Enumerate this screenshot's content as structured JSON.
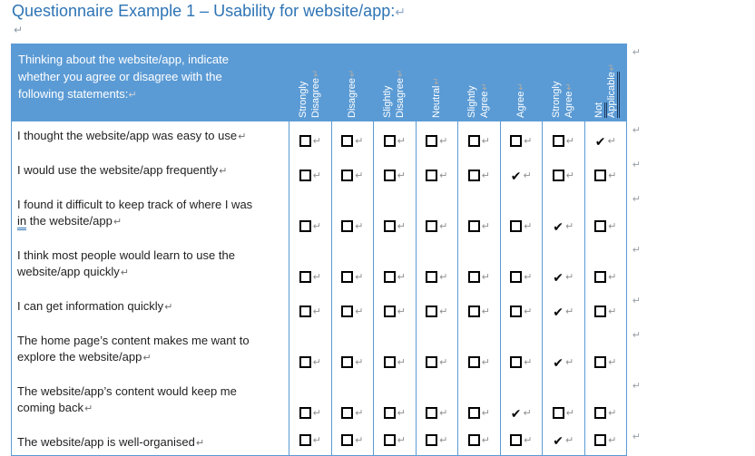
{
  "page": {
    "title": "Questionnaire Example 1 – Usability for website/app:"
  },
  "glyphs": {
    "paragraph_mark": "↵",
    "checkmark": "✔",
    "empty_checkbox": "checkbox-outline-square"
  },
  "colors": {
    "title_text": "#2E74B5",
    "header_background": "#5B9BD5",
    "table_border": "#5B9BD5",
    "header_text": "#FFFFFF",
    "not_applicable_underline": "#17365D",
    "grammar_underline": "#2E74B5",
    "checkmark": "#000000",
    "formatting_marks": "#8f8f8f"
  },
  "table": {
    "header": {
      "statement_lines": [
        "Thinking about the website/app, indicate",
        "whether you agree or disagree with the",
        "following statements:"
      ],
      "columns": [
        {
          "label": "Strongly Disagree",
          "underlined": false
        },
        {
          "label": "Disagree",
          "underlined": false
        },
        {
          "label": "Slightly Disagree",
          "underlined": false
        },
        {
          "label": "Neutral",
          "underlined": false
        },
        {
          "label": "Slightly Agree",
          "underlined": false
        },
        {
          "label": "Agree",
          "underlined": false
        },
        {
          "label": "Strongly Agree",
          "underlined": false
        },
        {
          "label": "Not Applicable",
          "underlined": true
        }
      ]
    },
    "rows": [
      {
        "lines": [
          "I thought the website/app was easy to use"
        ],
        "checked_column": "Not Applicable"
      },
      {
        "lines": [
          "I would use the website/app frequently"
        ],
        "checked_column": "Agree"
      },
      {
        "lines": [
          "I found it difficult to keep track of where I was",
          "in the website/app"
        ],
        "grammar_underline_word": "in",
        "checked_column": "Strongly Agree"
      },
      {
        "lines": [
          "I think most people would learn to use the",
          "website/app quickly"
        ],
        "checked_column": "Strongly Agree"
      },
      {
        "lines": [
          "I can get information quickly"
        ],
        "checked_column": "Strongly Agree"
      },
      {
        "lines": [
          "The home page’s content makes me want to",
          "explore the website/app"
        ],
        "checked_column": "Strongly Agree"
      },
      {
        "lines": [
          "The website/app’s content would keep me",
          "coming back"
        ],
        "checked_column": "Agree"
      },
      {
        "lines": [
          "The website/app is well-organised"
        ],
        "checked_column": "Strongly Agree"
      }
    ]
  }
}
